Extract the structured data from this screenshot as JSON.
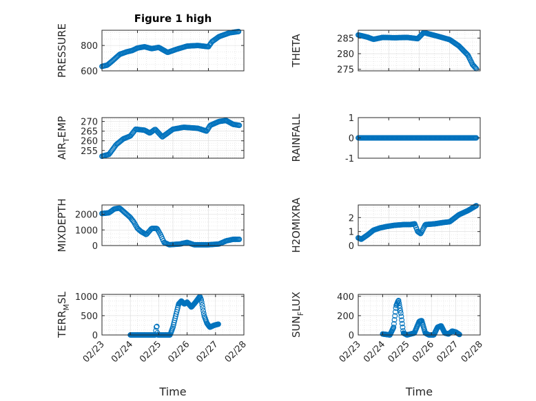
{
  "figure": {
    "title": "Figure 1 high",
    "marker_color": "#0072bd",
    "axes_color": "#262626",
    "grid_color": "#d9d9d9"
  },
  "chart_data": [
    {
      "type": "scatter",
      "ylabel": "PRESSURE",
      "title": "Figure 1 high",
      "xlim": [
        "02/24",
        "02/28"
      ],
      "ylim": [
        600,
        920
      ],
      "yticks": [
        600,
        800
      ],
      "xticks": [
        "02/24",
        "02/25",
        "02/26",
        "02/27",
        "02/28"
      ],
      "show_xticklabels": false,
      "grid": true,
      "anchors": [
        [
          0.0,
          635
        ],
        [
          0.15,
          645
        ],
        [
          0.3,
          680
        ],
        [
          0.5,
          730
        ],
        [
          0.7,
          750
        ],
        [
          0.85,
          760
        ],
        [
          1.0,
          780
        ],
        [
          1.2,
          790
        ],
        [
          1.4,
          775
        ],
        [
          1.6,
          785
        ],
        [
          1.85,
          745
        ],
        [
          2.1,
          770
        ],
        [
          2.4,
          795
        ],
        [
          2.7,
          800
        ],
        [
          3.0,
          790
        ],
        [
          3.1,
          830
        ],
        [
          3.3,
          870
        ],
        [
          3.6,
          900
        ],
        [
          3.85,
          910
        ]
      ],
      "n_points": 160
    },
    {
      "type": "scatter",
      "ylabel": "THETA",
      "xlim": [
        "02/24",
        "02/28"
      ],
      "ylim": [
        274.5,
        287.5
      ],
      "yticks": [
        275,
        280,
        285
      ],
      "xticks": [
        "02/24",
        "02/25",
        "02/26",
        "02/27",
        "02/28"
      ],
      "show_xticklabels": false,
      "grid": true,
      "anchors": [
        [
          0.0,
          286
        ],
        [
          0.3,
          285.3
        ],
        [
          0.5,
          284.6
        ],
        [
          0.8,
          285.2
        ],
        [
          1.2,
          285.1
        ],
        [
          1.6,
          285.2
        ],
        [
          1.95,
          284.8
        ],
        [
          2.15,
          286.8
        ],
        [
          2.25,
          286.5
        ],
        [
          2.6,
          285.6
        ],
        [
          3.0,
          284.5
        ],
        [
          3.3,
          282.5
        ],
        [
          3.6,
          279.5
        ],
        [
          3.75,
          276.5
        ],
        [
          3.87,
          275.2
        ]
      ],
      "n_points": 160
    },
    {
      "type": "scatter",
      "ylabel": "AIR_TEMP",
      "xlim": [
        "02/24",
        "02/28"
      ],
      "ylim": [
        251,
        272
      ],
      "yticks": [
        255,
        260,
        265,
        270
      ],
      "xticks": [
        "02/24",
        "02/25",
        "02/26",
        "02/27",
        "02/28"
      ],
      "show_xticklabels": false,
      "grid": true,
      "anchors": [
        [
          0.0,
          252
        ],
        [
          0.2,
          253
        ],
        [
          0.4,
          258
        ],
        [
          0.6,
          261
        ],
        [
          0.8,
          262.5
        ],
        [
          0.95,
          266
        ],
        [
          1.2,
          265.5
        ],
        [
          1.35,
          264
        ],
        [
          1.5,
          266
        ],
        [
          1.7,
          262
        ],
        [
          2.0,
          266
        ],
        [
          2.3,
          267
        ],
        [
          2.7,
          266.5
        ],
        [
          2.95,
          265
        ],
        [
          3.05,
          268
        ],
        [
          3.3,
          270
        ],
        [
          3.5,
          270.5
        ],
        [
          3.7,
          268.5
        ],
        [
          3.87,
          268
        ]
      ],
      "n_points": 160
    },
    {
      "type": "scatter",
      "ylabel": "RAINFALL",
      "xlim": [
        "02/24",
        "02/28"
      ],
      "ylim": [
        -1,
        1
      ],
      "yticks": [
        -1,
        0,
        1
      ],
      "xticks": [
        "02/24",
        "02/25",
        "02/26",
        "02/27",
        "02/28"
      ],
      "show_xticklabels": false,
      "grid": false,
      "anchors": [
        [
          0.0,
          0
        ],
        [
          3.87,
          0
        ]
      ],
      "n_points": 160
    },
    {
      "type": "scatter",
      "ylabel": "MIXDEPTH",
      "xlim": [
        "02/24",
        "02/28"
      ],
      "ylim": [
        0,
        2600
      ],
      "yticks": [
        0,
        1000,
        2000
      ],
      "xticks": [
        "02/24",
        "02/25",
        "02/26",
        "02/27",
        "02/28"
      ],
      "show_xticklabels": false,
      "grid": true,
      "anchors": [
        [
          0.0,
          2050
        ],
        [
          0.2,
          2100
        ],
        [
          0.35,
          2350
        ],
        [
          0.5,
          2400
        ],
        [
          0.65,
          2100
        ],
        [
          0.8,
          1800
        ],
        [
          0.9,
          1500
        ],
        [
          1.0,
          1100
        ],
        [
          1.1,
          900
        ],
        [
          1.25,
          700
        ],
        [
          1.4,
          1100
        ],
        [
          1.55,
          1100
        ],
        [
          1.65,
          700
        ],
        [
          1.75,
          200
        ],
        [
          1.9,
          50
        ],
        [
          2.2,
          100
        ],
        [
          2.4,
          200
        ],
        [
          2.6,
          50
        ],
        [
          3.0,
          50
        ],
        [
          3.3,
          100
        ],
        [
          3.5,
          300
        ],
        [
          3.7,
          400
        ],
        [
          3.87,
          400
        ]
      ],
      "n_points": 160
    },
    {
      "type": "scatter",
      "ylabel": "H2OMIXRA",
      "xlim": [
        "02/24",
        "02/28"
      ],
      "ylim": [
        0,
        2.9
      ],
      "yticks": [
        0,
        1,
        2
      ],
      "xticks": [
        "02/24",
        "02/25",
        "02/26",
        "02/27",
        "02/28"
      ],
      "show_xticklabels": false,
      "grid": true,
      "anchors": [
        [
          0.0,
          0.55
        ],
        [
          0.1,
          0.45
        ],
        [
          0.3,
          0.75
        ],
        [
          0.5,
          1.1
        ],
        [
          0.7,
          1.25
        ],
        [
          0.9,
          1.35
        ],
        [
          1.2,
          1.45
        ],
        [
          1.5,
          1.5
        ],
        [
          1.7,
          1.5
        ],
        [
          1.85,
          1.55
        ],
        [
          1.95,
          1.0
        ],
        [
          2.05,
          0.85
        ],
        [
          2.2,
          1.5
        ],
        [
          2.5,
          1.55
        ],
        [
          2.8,
          1.65
        ],
        [
          3.0,
          1.7
        ],
        [
          3.3,
          2.2
        ],
        [
          3.6,
          2.5
        ],
        [
          3.87,
          2.85
        ]
      ],
      "n_points": 160
    },
    {
      "type": "scatter",
      "ylabel": "TERR_MSL",
      "xlim": [
        "02/23",
        "02/28"
      ],
      "ylim": [
        0,
        1050
      ],
      "yticks": [
        0,
        500,
        1000
      ],
      "xticks": [
        "02/23",
        "02/24",
        "02/25",
        "02/26",
        "02/27",
        "02/28"
      ],
      "show_xticklabels": true,
      "xlabel": "Time",
      "grid": true,
      "anchors": [
        [
          1.0,
          0
        ],
        [
          1.88,
          0
        ],
        [
          1.9,
          120
        ],
        [
          1.93,
          270
        ],
        [
          1.96,
          0
        ],
        [
          2.4,
          0
        ],
        [
          2.5,
          200
        ],
        [
          2.6,
          500
        ],
        [
          2.7,
          800
        ],
        [
          2.8,
          880
        ],
        [
          2.9,
          800
        ],
        [
          3.0,
          850
        ],
        [
          3.15,
          720
        ],
        [
          3.3,
          850
        ],
        [
          3.4,
          950
        ],
        [
          3.45,
          1000
        ],
        [
          3.5,
          900
        ],
        [
          3.6,
          500
        ],
        [
          3.7,
          300
        ],
        [
          3.8,
          200
        ],
        [
          3.95,
          250
        ],
        [
          4.1,
          280
        ]
      ],
      "n_points": 170
    },
    {
      "type": "scatter",
      "ylabel": "SUN_FLUX",
      "xlim": [
        "02/23",
        "02/28"
      ],
      "ylim": [
        0,
        420
      ],
      "yticks": [
        0,
        200,
        400
      ],
      "xticks": [
        "02/23",
        "02/24",
        "02/25",
        "02/26",
        "02/27",
        "02/28"
      ],
      "show_xticklabels": true,
      "xlabel": "Time",
      "grid": true,
      "anchors": [
        [
          1.0,
          10
        ],
        [
          1.3,
          0
        ],
        [
          1.45,
          80
        ],
        [
          1.55,
          300
        ],
        [
          1.65,
          360
        ],
        [
          1.75,
          220
        ],
        [
          1.85,
          20
        ],
        [
          2.0,
          0
        ],
        [
          2.3,
          20
        ],
        [
          2.5,
          140
        ],
        [
          2.6,
          150
        ],
        [
          2.75,
          20
        ],
        [
          2.9,
          0
        ],
        [
          3.1,
          0
        ],
        [
          3.25,
          80
        ],
        [
          3.4,
          95
        ],
        [
          3.55,
          20
        ],
        [
          3.7,
          10
        ],
        [
          3.85,
          40
        ],
        [
          4.0,
          30
        ],
        [
          4.15,
          5
        ]
      ],
      "n_points": 170
    }
  ]
}
